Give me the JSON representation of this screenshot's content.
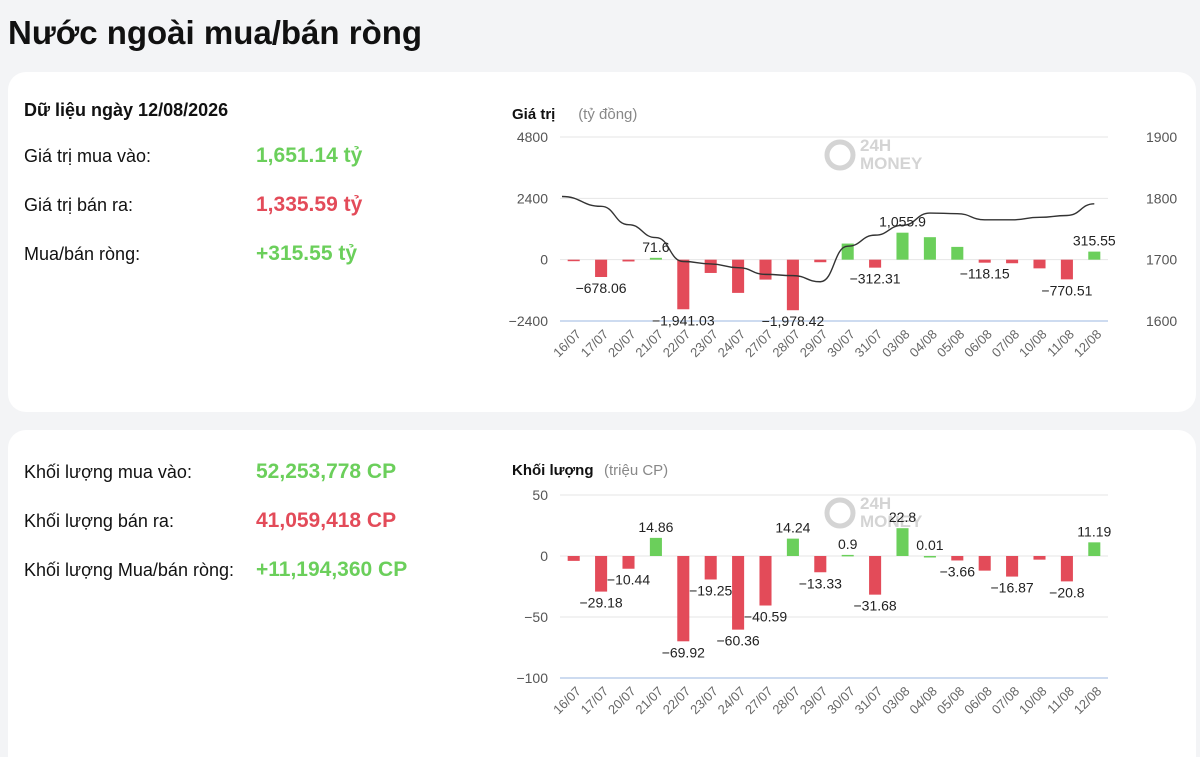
{
  "page_title": "Nước ngoài mua/bán ròng",
  "value_panel": {
    "date_label": "Dữ liệu ngày 12/08/2026",
    "rows": [
      {
        "label": "Giá trị mua vào:",
        "value": "1,651.14 tỷ",
        "tone": "green"
      },
      {
        "label": "Giá trị bán ra:",
        "value": "1,335.59 tỷ",
        "tone": "red"
      },
      {
        "label": "Mua/bán ròng:",
        "value": "+315.55 tỷ",
        "tone": "green"
      }
    ]
  },
  "volume_panel": {
    "rows": [
      {
        "label": "Khối lượng mua vào:",
        "value": "52,253,778 CP",
        "tone": "green"
      },
      {
        "label": "Khối lượng bán ra:",
        "value": "41,059,418 CP",
        "tone": "red"
      },
      {
        "label": "Khối lượng Mua/bán ròng:",
        "value": "+11,194,360 CP",
        "tone": "green"
      }
    ]
  },
  "watermark": {
    "line1": "24H",
    "line2": "MONEY"
  },
  "colors": {
    "positive": "#6bcf5b",
    "negative": "#e34b59",
    "line": "#333333",
    "grid": "#e6e6e6",
    "axis": "#9bb7e0"
  },
  "chart_data": [
    {
      "type": "bar",
      "title": "Giá trị",
      "unit": "(tỷ đồng)",
      "categories": [
        "16/07",
        "17/07",
        "20/07",
        "21/07",
        "22/07",
        "23/07",
        "24/07",
        "27/07",
        "28/07",
        "29/07",
        "30/07",
        "31/07",
        "03/08",
        "04/08",
        "05/08",
        "06/08",
        "07/08",
        "10/08",
        "11/08",
        "12/08"
      ],
      "values": [
        -60,
        -678.06,
        -70,
        71.6,
        -1941.03,
        -520,
        -1300,
        -780,
        -1978.42,
        -100,
        630,
        -312.31,
        1055.9,
        880,
        500,
        -118.15,
        -140,
        -340,
        -770.51,
        315.55
      ],
      "data_labels": {
        "1": "−678.06",
        "3": "71.6",
        "4": "−1,941.03",
        "8": "−1,978.42",
        "11": "−312.31",
        "12": "1,055.9",
        "15": "−118.15",
        "18": "−770.51",
        "19": "315.55"
      },
      "ylim": [
        -2400,
        4800
      ],
      "yticks": [
        "4800",
        "2400",
        "0",
        "-2400"
      ],
      "line_series": [
        1803,
        1787,
        1757,
        1736,
        1697,
        1693,
        1687,
        1676,
        1674,
        1664,
        1722,
        1740,
        1756,
        1776,
        1775,
        1765,
        1765,
        1769,
        1772,
        1791
      ],
      "y2lim": [
        1600,
        1900
      ],
      "y2ticks": [
        "1900",
        "1800",
        "1700",
        "1600"
      ]
    },
    {
      "type": "bar",
      "title": "Khối lượng",
      "unit": "(triệu CP)",
      "categories": [
        "16/07",
        "17/07",
        "20/07",
        "21/07",
        "22/07",
        "23/07",
        "24/07",
        "27/07",
        "28/07",
        "29/07",
        "30/07",
        "31/07",
        "03/08",
        "04/08",
        "05/08",
        "06/08",
        "07/08",
        "10/08",
        "11/08",
        "12/08"
      ],
      "values": [
        -4,
        -29.18,
        -10.44,
        14.86,
        -69.92,
        -19.25,
        -60.36,
        -40.59,
        14.24,
        -13.33,
        0.9,
        -31.68,
        22.8,
        0.01,
        -3.66,
        -12,
        -16.87,
        -3,
        -20.8,
        11.19
      ],
      "data_labels": {
        "1": "−29.18",
        "2": "−10.44",
        "3": "14.86",
        "4": "−69.92",
        "5": "−19.25",
        "6": "−60.36",
        "7": "−40.59",
        "8": "14.24",
        "9": "−13.33",
        "10": "0.9",
        "11": "−31.68",
        "12": "22.8",
        "13": "0.01",
        "14": "−3.66",
        "16": "−16.87",
        "18": "−20.8",
        "19": "11.19"
      },
      "ylim": [
        -100,
        50
      ],
      "yticks": [
        "50",
        "0",
        "-50",
        "-100"
      ]
    }
  ]
}
